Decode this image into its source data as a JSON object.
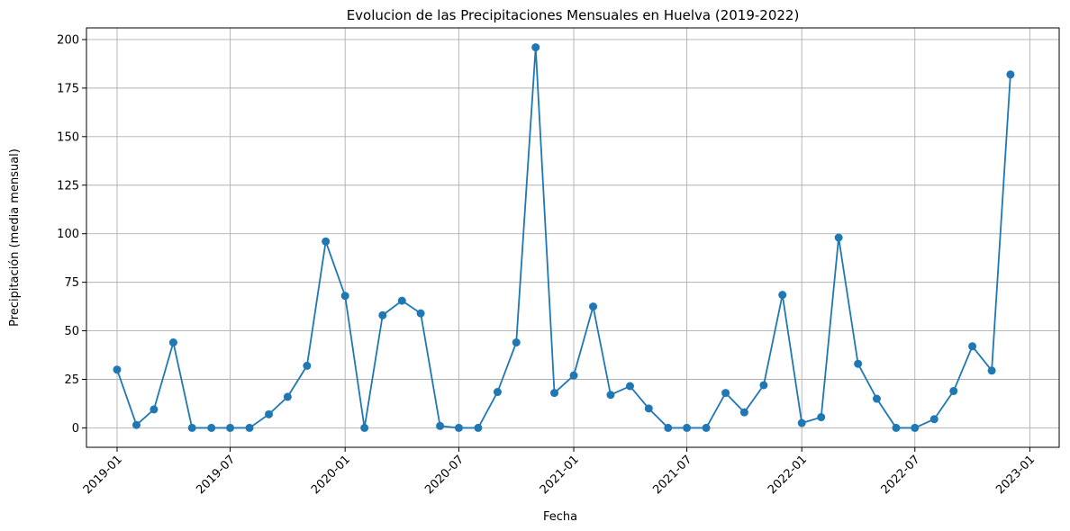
{
  "chart_data": {
    "type": "line",
    "title": "Evolucion de las Precipitaciones Mensuales en Huelva (2019-2022)",
    "xlabel": "Fecha",
    "ylabel": "Precipitación (media mensual)",
    "ylim": [
      -10,
      206
    ],
    "xlim": [
      "2018-11-13",
      "2023-02-17"
    ],
    "yticks": [
      0,
      25,
      50,
      75,
      100,
      125,
      150,
      175,
      200
    ],
    "xticks": [
      "2019-01",
      "2019-07",
      "2020-01",
      "2020-07",
      "2021-01",
      "2021-07",
      "2022-01",
      "2022-07",
      "2023-01"
    ],
    "grid": true,
    "marker": "circle",
    "color": "#1f77b4",
    "series": [
      {
        "x": [
          "2019-01-01",
          "2019-02-01",
          "2019-03-01",
          "2019-04-01",
          "2019-05-01",
          "2019-06-01",
          "2019-07-01",
          "2019-08-01",
          "2019-09-01",
          "2019-10-01",
          "2019-11-01",
          "2019-12-01",
          "2020-01-01",
          "2020-02-01",
          "2020-03-01",
          "2020-04-01",
          "2020-05-01",
          "2020-06-01",
          "2020-07-01",
          "2020-08-01",
          "2020-09-01",
          "2020-10-01",
          "2020-11-01",
          "2020-12-01",
          "2021-01-01",
          "2021-02-01",
          "2021-03-01",
          "2021-04-01",
          "2021-05-01",
          "2021-06-01",
          "2021-07-01",
          "2021-08-01",
          "2021-09-01",
          "2021-10-01",
          "2021-11-01",
          "2021-12-01",
          "2022-01-01",
          "2022-02-01",
          "2022-03-01",
          "2022-04-01",
          "2022-05-01",
          "2022-06-01",
          "2022-07-01",
          "2022-08-01",
          "2022-09-01",
          "2022-10-01",
          "2022-11-01",
          "2022-12-01"
        ],
        "values": [
          30,
          1.5,
          9.5,
          44,
          0,
          0,
          0,
          0,
          7,
          16,
          32,
          96,
          68,
          0,
          58,
          65.5,
          59,
          1,
          0,
          0,
          18.5,
          44,
          196,
          18,
          27,
          62.5,
          17,
          21.5,
          10,
          0,
          0,
          0,
          18,
          8,
          22,
          68.5,
          2.5,
          5.5,
          98,
          33,
          15,
          0,
          0,
          4.5,
          19,
          42,
          29.5,
          182
        ]
      }
    ]
  }
}
